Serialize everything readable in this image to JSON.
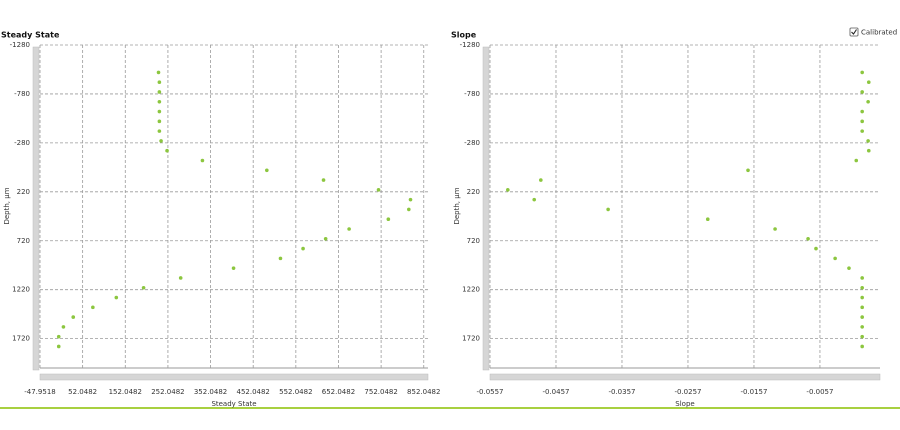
{
  "controls": {
    "calibrated": "Calibrated"
  },
  "chart_data": [
    {
      "type": "scatter",
      "title": "Steady State",
      "xlabel": "Steady State",
      "ylabel": "Depth, µm",
      "color": "#8cc63f",
      "grid": true,
      "xlim": [
        -47.9518,
        862
      ],
      "ylim": [
        2020,
        -1280
      ],
      "xticks": [
        -47.9518,
        52.0482,
        152.0482,
        252.0482,
        352.0482,
        452.0482,
        552.0482,
        652.0482,
        752.0482,
        852.0482
      ],
      "yticks": [
        -1280,
        -780,
        -280,
        220,
        720,
        1220,
        1720
      ],
      "x": [
        230,
        232,
        232,
        232,
        232,
        232,
        232,
        236,
        250,
        333,
        484,
        617,
        746,
        821,
        817,
        769,
        677,
        622,
        569,
        516,
        406,
        282,
        195,
        131,
        76,
        30,
        7,
        -4,
        -4
      ],
      "y": [
        -1000,
        -900,
        -800,
        -700,
        -600,
        -500,
        -400,
        -300,
        -200,
        -100,
        0,
        100,
        200,
        300,
        400,
        500,
        600,
        700,
        800,
        900,
        1000,
        1100,
        1200,
        1300,
        1400,
        1500,
        1600,
        1700,
        1800
      ]
    },
    {
      "type": "scatter",
      "title": "Slope",
      "xlabel": "Slope",
      "ylabel": "Depth, µm",
      "color": "#8cc63f",
      "grid": true,
      "xlim": [
        -0.0557,
        0.0034
      ],
      "ylim": [
        2020,
        -1280
      ],
      "xticks": [
        -0.0557,
        -0.0457,
        -0.0357,
        -0.0257,
        -0.0157,
        -0.0057
      ],
      "yticks": [
        -1280,
        -780,
        -280,
        220,
        720,
        1220,
        1720
      ],
      "x": [
        0.0007,
        0.0017,
        0.0007,
        0.0016,
        0.0007,
        0.0007,
        0.0007,
        0.0016,
        0.0017,
        -0.0002,
        -0.0166,
        -0.048,
        -0.053,
        -0.049,
        -0.0378,
        -0.0227,
        -0.0125,
        -0.0075,
        -0.0063,
        -0.0034,
        -0.0013,
        0.0007,
        0.0007,
        0.0007,
        0.0007,
        0.0007,
        0.0007,
        0.0007,
        0.0007
      ],
      "y": [
        -1000,
        -900,
        -800,
        -700,
        -600,
        -500,
        -400,
        -300,
        -200,
        -100,
        0,
        100,
        200,
        300,
        400,
        500,
        600,
        700,
        800,
        900,
        1000,
        1100,
        1200,
        1300,
        1400,
        1500,
        1600,
        1700,
        1800
      ]
    }
  ]
}
